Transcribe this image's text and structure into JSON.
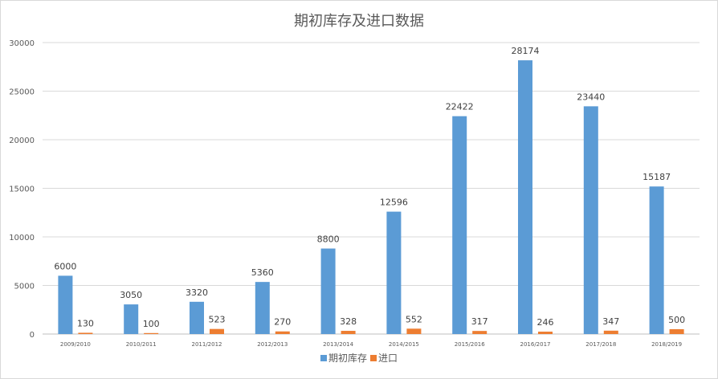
{
  "chart_data": {
    "type": "bar",
    "title": "期初库存及进口数据",
    "categories": [
      "2009/2010",
      "2010/2011",
      "2011/2012",
      "2012/2013",
      "2013/2014",
      "2014/2015",
      "2015/2016",
      "2016/2017",
      "2017/2018",
      "2018/2019"
    ],
    "series": [
      {
        "name": "期初库存",
        "color": "#5b9bd5",
        "values": [
          6000,
          3050,
          3320,
          5360,
          8800,
          12596,
          22422,
          28174,
          23440,
          15187
        ]
      },
      {
        "name": "进口",
        "color": "#ed7d31",
        "values": [
          130,
          100,
          523,
          270,
          328,
          552,
          317,
          246,
          347,
          500
        ]
      }
    ],
    "yticks": [
      0,
      5000,
      10000,
      15000,
      20000,
      25000,
      30000
    ],
    "ylim": [
      0,
      30000
    ],
    "grid": true,
    "legend": "bottom",
    "data_labels": true
  }
}
